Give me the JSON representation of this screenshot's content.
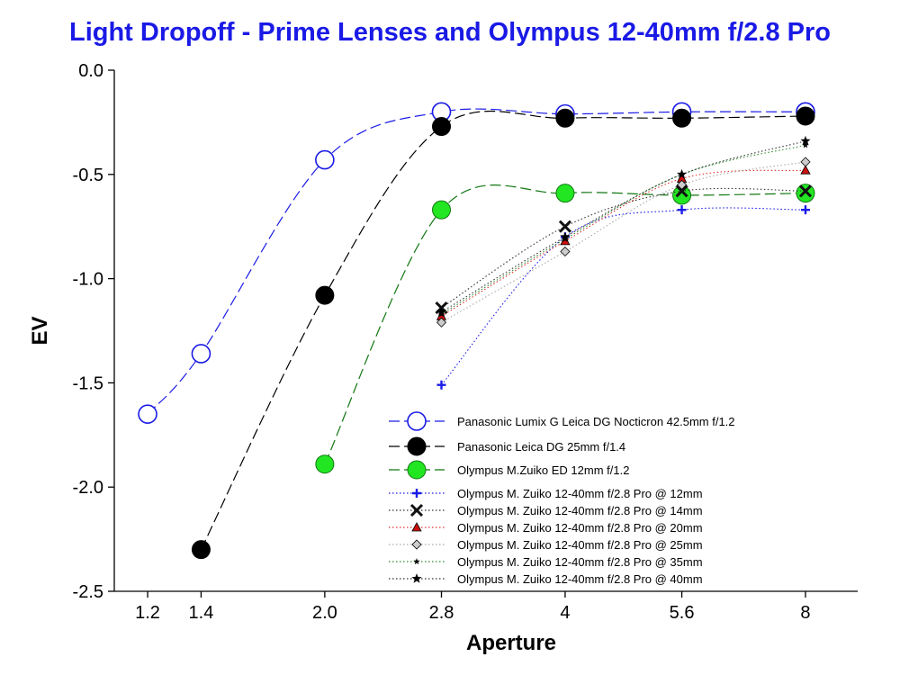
{
  "chart_data": {
    "type": "line",
    "title": "Light Dropoff - Prime Lenses and Olympus 12-40mm f/2.8 Pro",
    "xlabel": "Aperture",
    "ylabel": "EV",
    "x_scale": "log2",
    "xlim": [
      1.09,
      9.3
    ],
    "ylim": [
      -2.5,
      0.0
    ],
    "x_ticks": [
      "1.2",
      "1.4",
      "2.0",
      "2.8",
      "4",
      "5.6",
      "8"
    ],
    "y_ticks": [
      "0.0",
      "-0.5",
      "-1.0",
      "-1.5",
      "-2.0",
      "-2.5"
    ],
    "grid": false,
    "legend_position": "bottom-right",
    "series": [
      {
        "name": "Panasonic Lumix G Leica DG Nocticron 42.5mm f/1.2",
        "color": "#1a1ae6",
        "marker": "open-circle",
        "line": "dashed",
        "x": [
          1.2,
          1.4,
          2.0,
          2.8,
          4,
          5.6,
          8
        ],
        "y": [
          -1.65,
          -1.36,
          -0.43,
          -0.2,
          -0.21,
          -0.2,
          -0.2
        ]
      },
      {
        "name": "Panasonic Leica DG 25mm f/1.4",
        "color": "#000000",
        "marker": "filled-circle",
        "line": "dashed",
        "x": [
          1.4,
          2.0,
          2.8,
          4,
          5.6,
          8
        ],
        "y": [
          -2.3,
          -1.08,
          -0.27,
          -0.23,
          -0.23,
          -0.22
        ]
      },
      {
        "name": "Olympus M.Zuiko ED 12mm f/1.2",
        "color": "#2e8b2e",
        "marker": "green-circle",
        "line": "dashed",
        "x": [
          2.0,
          2.8,
          4,
          5.6,
          8
        ],
        "y": [
          -1.89,
          -0.67,
          -0.59,
          -0.6,
          -0.59
        ]
      },
      {
        "name": "Olympus M. Zuiko 12-40mm f/2.8 Pro @ 12mm",
        "color": "#1a1ae6",
        "marker": "plus",
        "line": "dotted",
        "x": [
          2.8,
          4,
          5.6,
          8
        ],
        "y": [
          -1.51,
          -0.8,
          -0.67,
          -0.67
        ]
      },
      {
        "name": "Olympus M. Zuiko 12-40mm f/2.8 Pro @ 14mm",
        "color": "#333333",
        "marker": "x",
        "line": "dotted",
        "x": [
          2.8,
          4,
          5.6,
          8
        ],
        "y": [
          -1.14,
          -0.75,
          -0.58,
          -0.58
        ]
      },
      {
        "name": "Olympus M. Zuiko 12-40mm f/2.8 Pro @ 20mm",
        "color": "#e03030",
        "marker": "triangle",
        "line": "dotted",
        "x": [
          2.8,
          4,
          5.6,
          8
        ],
        "y": [
          -1.18,
          -0.82,
          -0.52,
          -0.48
        ]
      },
      {
        "name": "Olympus M. Zuiko 12-40mm f/2.8 Pro @ 25mm",
        "color": "#aaaaaa",
        "marker": "diamond",
        "line": "dotted",
        "x": [
          2.8,
          4,
          5.6,
          8
        ],
        "y": [
          -1.21,
          -0.87,
          -0.55,
          -0.44
        ]
      },
      {
        "name": "Olympus M. Zuiko 12-40mm f/2.8 Pro @ 35mm",
        "color": "#2e8b2e",
        "marker": "small-star",
        "line": "dotted",
        "x": [
          2.8,
          4,
          5.6,
          8
        ],
        "y": [
          -1.17,
          -0.81,
          -0.5,
          -0.36
        ]
      },
      {
        "name": "Olympus M. Zuiko 12-40mm f/2.8 Pro @ 40mm",
        "color": "#333333",
        "marker": "star",
        "line": "dotted",
        "x": [
          2.8,
          4,
          5.6,
          8
        ],
        "y": [
          -1.16,
          -0.8,
          -0.5,
          -0.34
        ]
      }
    ]
  }
}
